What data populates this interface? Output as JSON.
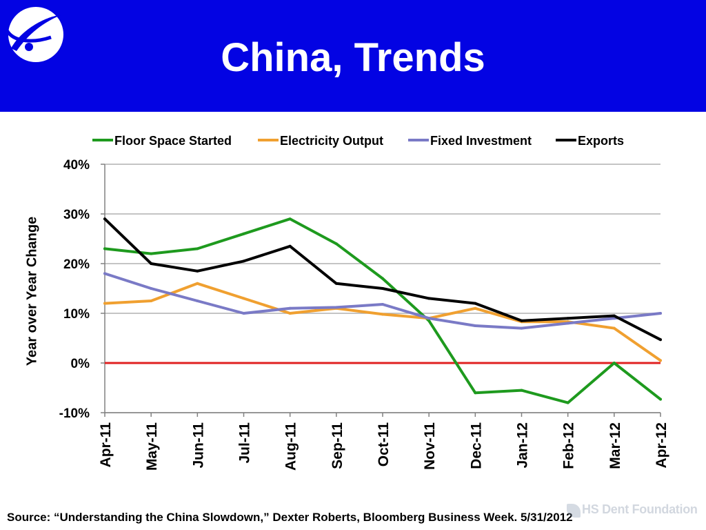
{
  "header": {
    "title": "China, Trends",
    "background_color": "#0303e3",
    "logo_icon": "globe-swoosh-icon"
  },
  "chart_data": {
    "type": "line",
    "title": "",
    "xlabel": "",
    "ylabel": "Year over Year Change",
    "categories": [
      "Apr-11",
      "May-11",
      "Jun-11",
      "Jul-11",
      "Aug-11",
      "Sep-11",
      "Oct-11",
      "Nov-11",
      "Dec-11",
      "Jan-12",
      "Feb-12",
      "Mar-12",
      "Apr-12"
    ],
    "ylim": [
      -10,
      40
    ],
    "yticks": [
      -10,
      0,
      10,
      20,
      30,
      40
    ],
    "ytick_labels": [
      "-10%",
      "0%",
      "10%",
      "20%",
      "30%",
      "40%"
    ],
    "grid": true,
    "legend_position": "top",
    "series": [
      {
        "name": "Floor Space Started",
        "color": "#1e9a1e",
        "values": [
          23,
          22,
          23,
          26,
          29,
          24,
          17,
          8.5,
          -6,
          -5.5,
          -8,
          0,
          -7.3
        ]
      },
      {
        "name": "Electricity Output",
        "color": "#f0a030",
        "values": [
          12,
          12.5,
          16,
          13,
          10,
          11,
          9.8,
          9,
          11,
          8.3,
          8.3,
          7,
          0.5
        ]
      },
      {
        "name": "Fixed Investment",
        "color": "#7a7ac6",
        "values": [
          18,
          15,
          12.5,
          10,
          11,
          11.2,
          11.8,
          9,
          7.5,
          7,
          8,
          9,
          10
        ]
      },
      {
        "name": "Exports",
        "color": "#000000",
        "values": [
          29,
          20,
          18.5,
          20.5,
          23.5,
          16,
          15,
          13,
          12,
          8.5,
          9,
          9.5,
          4.7
        ]
      }
    ],
    "reference_line": {
      "value": 0,
      "color": "#e02020"
    }
  },
  "footer": {
    "source": "Source: “Understanding the China Slowdown,” Dexter Roberts, Bloomberg Business Week. 5/31/2012",
    "watermark": "HS Dent Foundation",
    "watermark_icon": "hs-dent-logo-icon"
  }
}
